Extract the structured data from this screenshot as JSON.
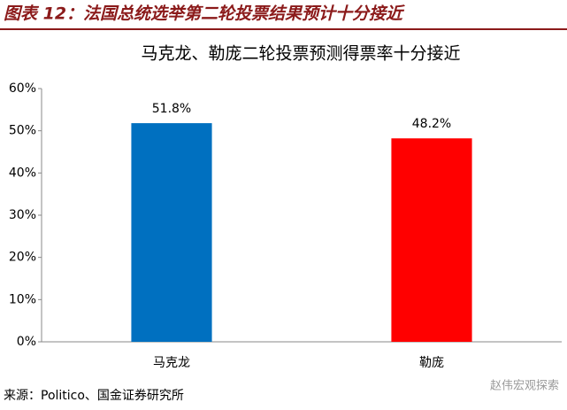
{
  "header": {
    "title": "图表 12：法国总统选举第二轮投票结果预计十分接近"
  },
  "chart_data": {
    "type": "bar",
    "title": "马克龙、勒庞二轮投票预测得票率十分接近",
    "categories": [
      "马克龙",
      "勒庞"
    ],
    "values": [
      51.8,
      48.2
    ],
    "value_labels": [
      "51.8%",
      "48.2%"
    ],
    "colors": [
      "#0070c0",
      "#ff0000"
    ],
    "ylim": [
      0,
      60
    ],
    "yticks": [
      {
        "value": 0,
        "label": "0%"
      },
      {
        "value": 10,
        "label": "10%"
      },
      {
        "value": 20,
        "label": "20%"
      },
      {
        "value": 30,
        "label": "30%"
      },
      {
        "value": 40,
        "label": "40%"
      },
      {
        "value": 50,
        "label": "50%"
      },
      {
        "value": 60,
        "label": "60%"
      }
    ]
  },
  "footer": {
    "source": "来源：Politico、国金证券研究所",
    "watermark": "赵伟宏观探索"
  }
}
